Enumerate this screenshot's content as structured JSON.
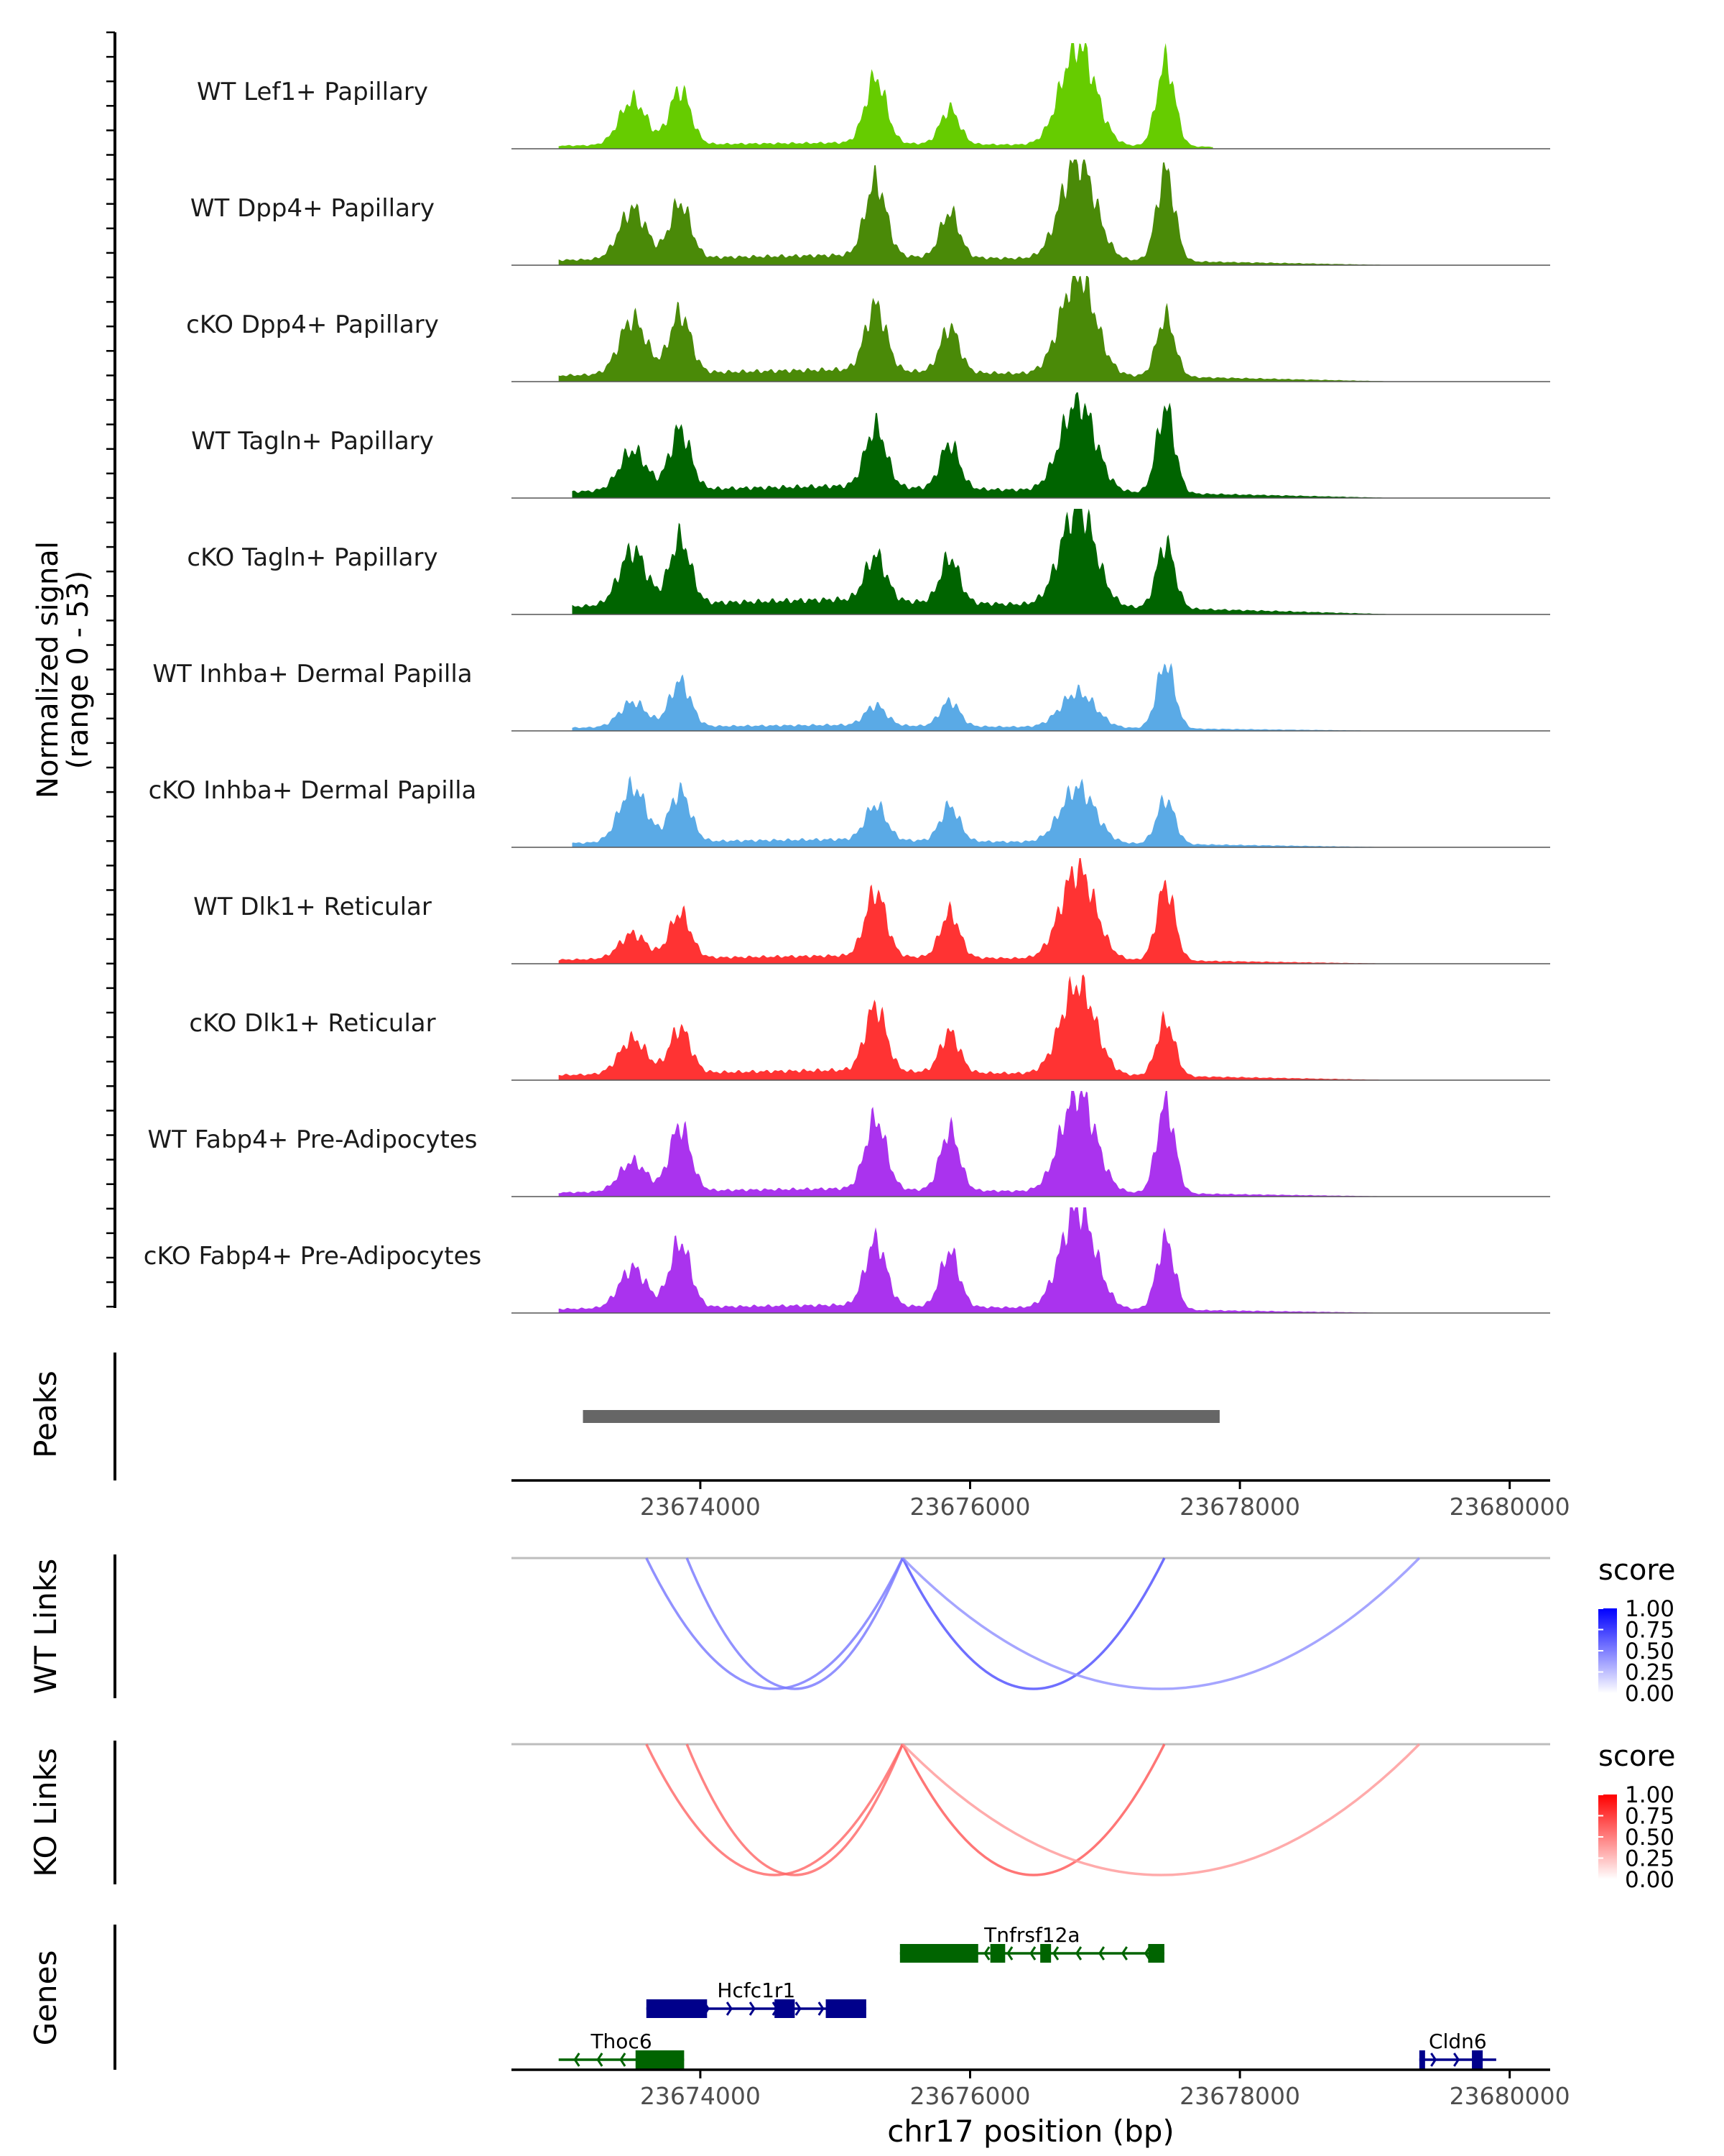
{
  "chart_data": {
    "type": "area",
    "title": "",
    "region": {
      "chrom": "chr17",
      "start": 23672600,
      "end": 23680300
    },
    "xlabel": "chr17 position (bp)",
    "x_ticks": [
      23674000,
      23676000,
      23678000,
      23680000
    ],
    "x_tick_labels": [
      "23674000",
      "23676000",
      "23678000",
      "23680000"
    ],
    "coverage": {
      "ylabel_line1": "Normalized signal",
      "ylabel_line2": "(range 0 - 53)",
      "ylim": [
        0,
        53
      ],
      "peak_centers_bp": [
        23673500,
        23673850,
        23675300,
        23675850,
        23676800,
        23677450
      ],
      "tracks": [
        {
          "name": "WT Lef1+ Papillary",
          "color": "#66CC00",
          "range": [
            23672950,
            23677800
          ],
          "amplitudes": [
            0.45,
            0.55,
            0.65,
            0.35,
            1.0,
            0.85
          ],
          "baseline": 0.06
        },
        {
          "name": "WT Dpp4+ Papillary",
          "color": "#4A8A08",
          "range": [
            23672950,
            23679900
          ],
          "amplitudes": [
            0.5,
            0.55,
            0.75,
            0.45,
            1.0,
            0.9
          ],
          "baseline": 0.1
        },
        {
          "name": "cKO Dpp4+ Papillary",
          "color": "#4A8A08",
          "range": [
            23672950,
            23679900
          ],
          "amplitudes": [
            0.55,
            0.6,
            0.65,
            0.45,
            1.0,
            0.6
          ],
          "baseline": 0.12
        },
        {
          "name": "WT Tagln+ Papillary",
          "color": "#006400",
          "range": [
            23673050,
            23680000
          ],
          "amplitudes": [
            0.4,
            0.6,
            0.6,
            0.45,
            0.9,
            0.85
          ],
          "baseline": 0.12
        },
        {
          "name": "cKO Tagln+ Papillary",
          "color": "#006400",
          "range": [
            23673050,
            23679900
          ],
          "amplitudes": [
            0.55,
            0.65,
            0.45,
            0.45,
            1.0,
            0.65
          ],
          "baseline": 0.15
        },
        {
          "name": "WT Inhba+ Dermal Papilla",
          "color": "#5AAAE6",
          "range": [
            23673050,
            23680000
          ],
          "amplitudes": [
            0.25,
            0.45,
            0.2,
            0.25,
            0.35,
            0.65
          ],
          "baseline": 0.06
        },
        {
          "name": "cKO Inhba+ Dermal Papilla",
          "color": "#5AAAE6",
          "range": [
            23673050,
            23679900
          ],
          "amplitudes": [
            0.55,
            0.5,
            0.35,
            0.35,
            0.55,
            0.45
          ],
          "baseline": 0.08
        },
        {
          "name": "WT Dlk1+ Reticular",
          "color": "#FF3333",
          "range": [
            23672950,
            23679900
          ],
          "amplitudes": [
            0.25,
            0.45,
            0.65,
            0.45,
            0.9,
            0.75
          ],
          "baseline": 0.08
        },
        {
          "name": "cKO Dlk1+ Reticular",
          "color": "#FF3333",
          "range": [
            23672950,
            23679900
          ],
          "amplitudes": [
            0.35,
            0.45,
            0.65,
            0.4,
            0.9,
            0.55
          ],
          "baseline": 0.1
        },
        {
          "name": "WT Fabp4+ Pre-Adipocytes",
          "color": "#AA33EE",
          "range": [
            23672950,
            23680000
          ],
          "amplitudes": [
            0.3,
            0.65,
            0.7,
            0.6,
            1.0,
            0.9
          ],
          "baseline": 0.08
        },
        {
          "name": "cKO Fabp4+ Pre-Adipocytes",
          "color": "#AA33EE",
          "range": [
            23672950,
            23680000
          ],
          "amplitudes": [
            0.4,
            0.65,
            0.65,
            0.55,
            1.0,
            0.7
          ],
          "baseline": 0.08
        }
      ]
    },
    "peaks": {
      "label": "Peaks",
      "items": [
        {
          "start": 23673130,
          "end": 23677850
        }
      ],
      "color": "#666666"
    },
    "links": [
      {
        "label": "WT Links",
        "legend_title": "score",
        "legend_ticks": [
          "1.00",
          "0.75",
          "0.50",
          "0.25",
          "0.00"
        ],
        "color_low": "#FFFFFF",
        "color_high": "#0000FF",
        "arcs": [
          {
            "start": 23673600,
            "end": 23675500,
            "score": 0.45
          },
          {
            "start": 23673900,
            "end": 23675500,
            "score": 0.45
          },
          {
            "start": 23675500,
            "end": 23677440,
            "score": 0.7
          },
          {
            "start": 23675500,
            "end": 23679330,
            "score": 0.3
          }
        ]
      },
      {
        "label": "KO Links",
        "legend_title": "score",
        "legend_ticks": [
          "1.00",
          "0.75",
          "0.50",
          "0.25",
          "0.00"
        ],
        "color_low": "#FFFFFF",
        "color_high": "#FF0000",
        "arcs": [
          {
            "start": 23673600,
            "end": 23675500,
            "score": 0.55
          },
          {
            "start": 23673900,
            "end": 23675500,
            "score": 0.55
          },
          {
            "start": 23675500,
            "end": 23677440,
            "score": 0.65
          },
          {
            "start": 23675500,
            "end": 23679330,
            "score": 0.25
          }
        ]
      }
    ],
    "genes": {
      "label": "Genes",
      "items": [
        {
          "name": "Tnfrsf12a",
          "strand": "-",
          "row": 0,
          "start": 23675480,
          "end": 23677440,
          "color": "#006400",
          "exons": [
            [
              23675480,
              23676060
            ],
            [
              23676150,
              23676260
            ],
            [
              23676520,
              23676600
            ],
            [
              23677320,
              23677440
            ]
          ]
        },
        {
          "name": "Hcfc1r1",
          "strand": "+",
          "row": 1,
          "start": 23673600,
          "end": 23675230,
          "color": "#00008B",
          "exons": [
            [
              23673600,
              23674050
            ],
            [
              23674550,
              23674700
            ],
            [
              23674930,
              23675230
            ]
          ]
        },
        {
          "name": "Thoc6",
          "strand": "-",
          "row": 2,
          "start": 23672950,
          "end": 23673880,
          "color": "#006400",
          "exons": [
            [
              23673520,
              23673880
            ]
          ]
        },
        {
          "name": "Cldn6",
          "strand": "+",
          "row": 2,
          "start": 23679330,
          "end": 23679900,
          "color": "#00008B",
          "exons": [
            [
              23679330,
              23679370
            ],
            [
              23679720,
              23679800
            ]
          ]
        }
      ]
    }
  }
}
